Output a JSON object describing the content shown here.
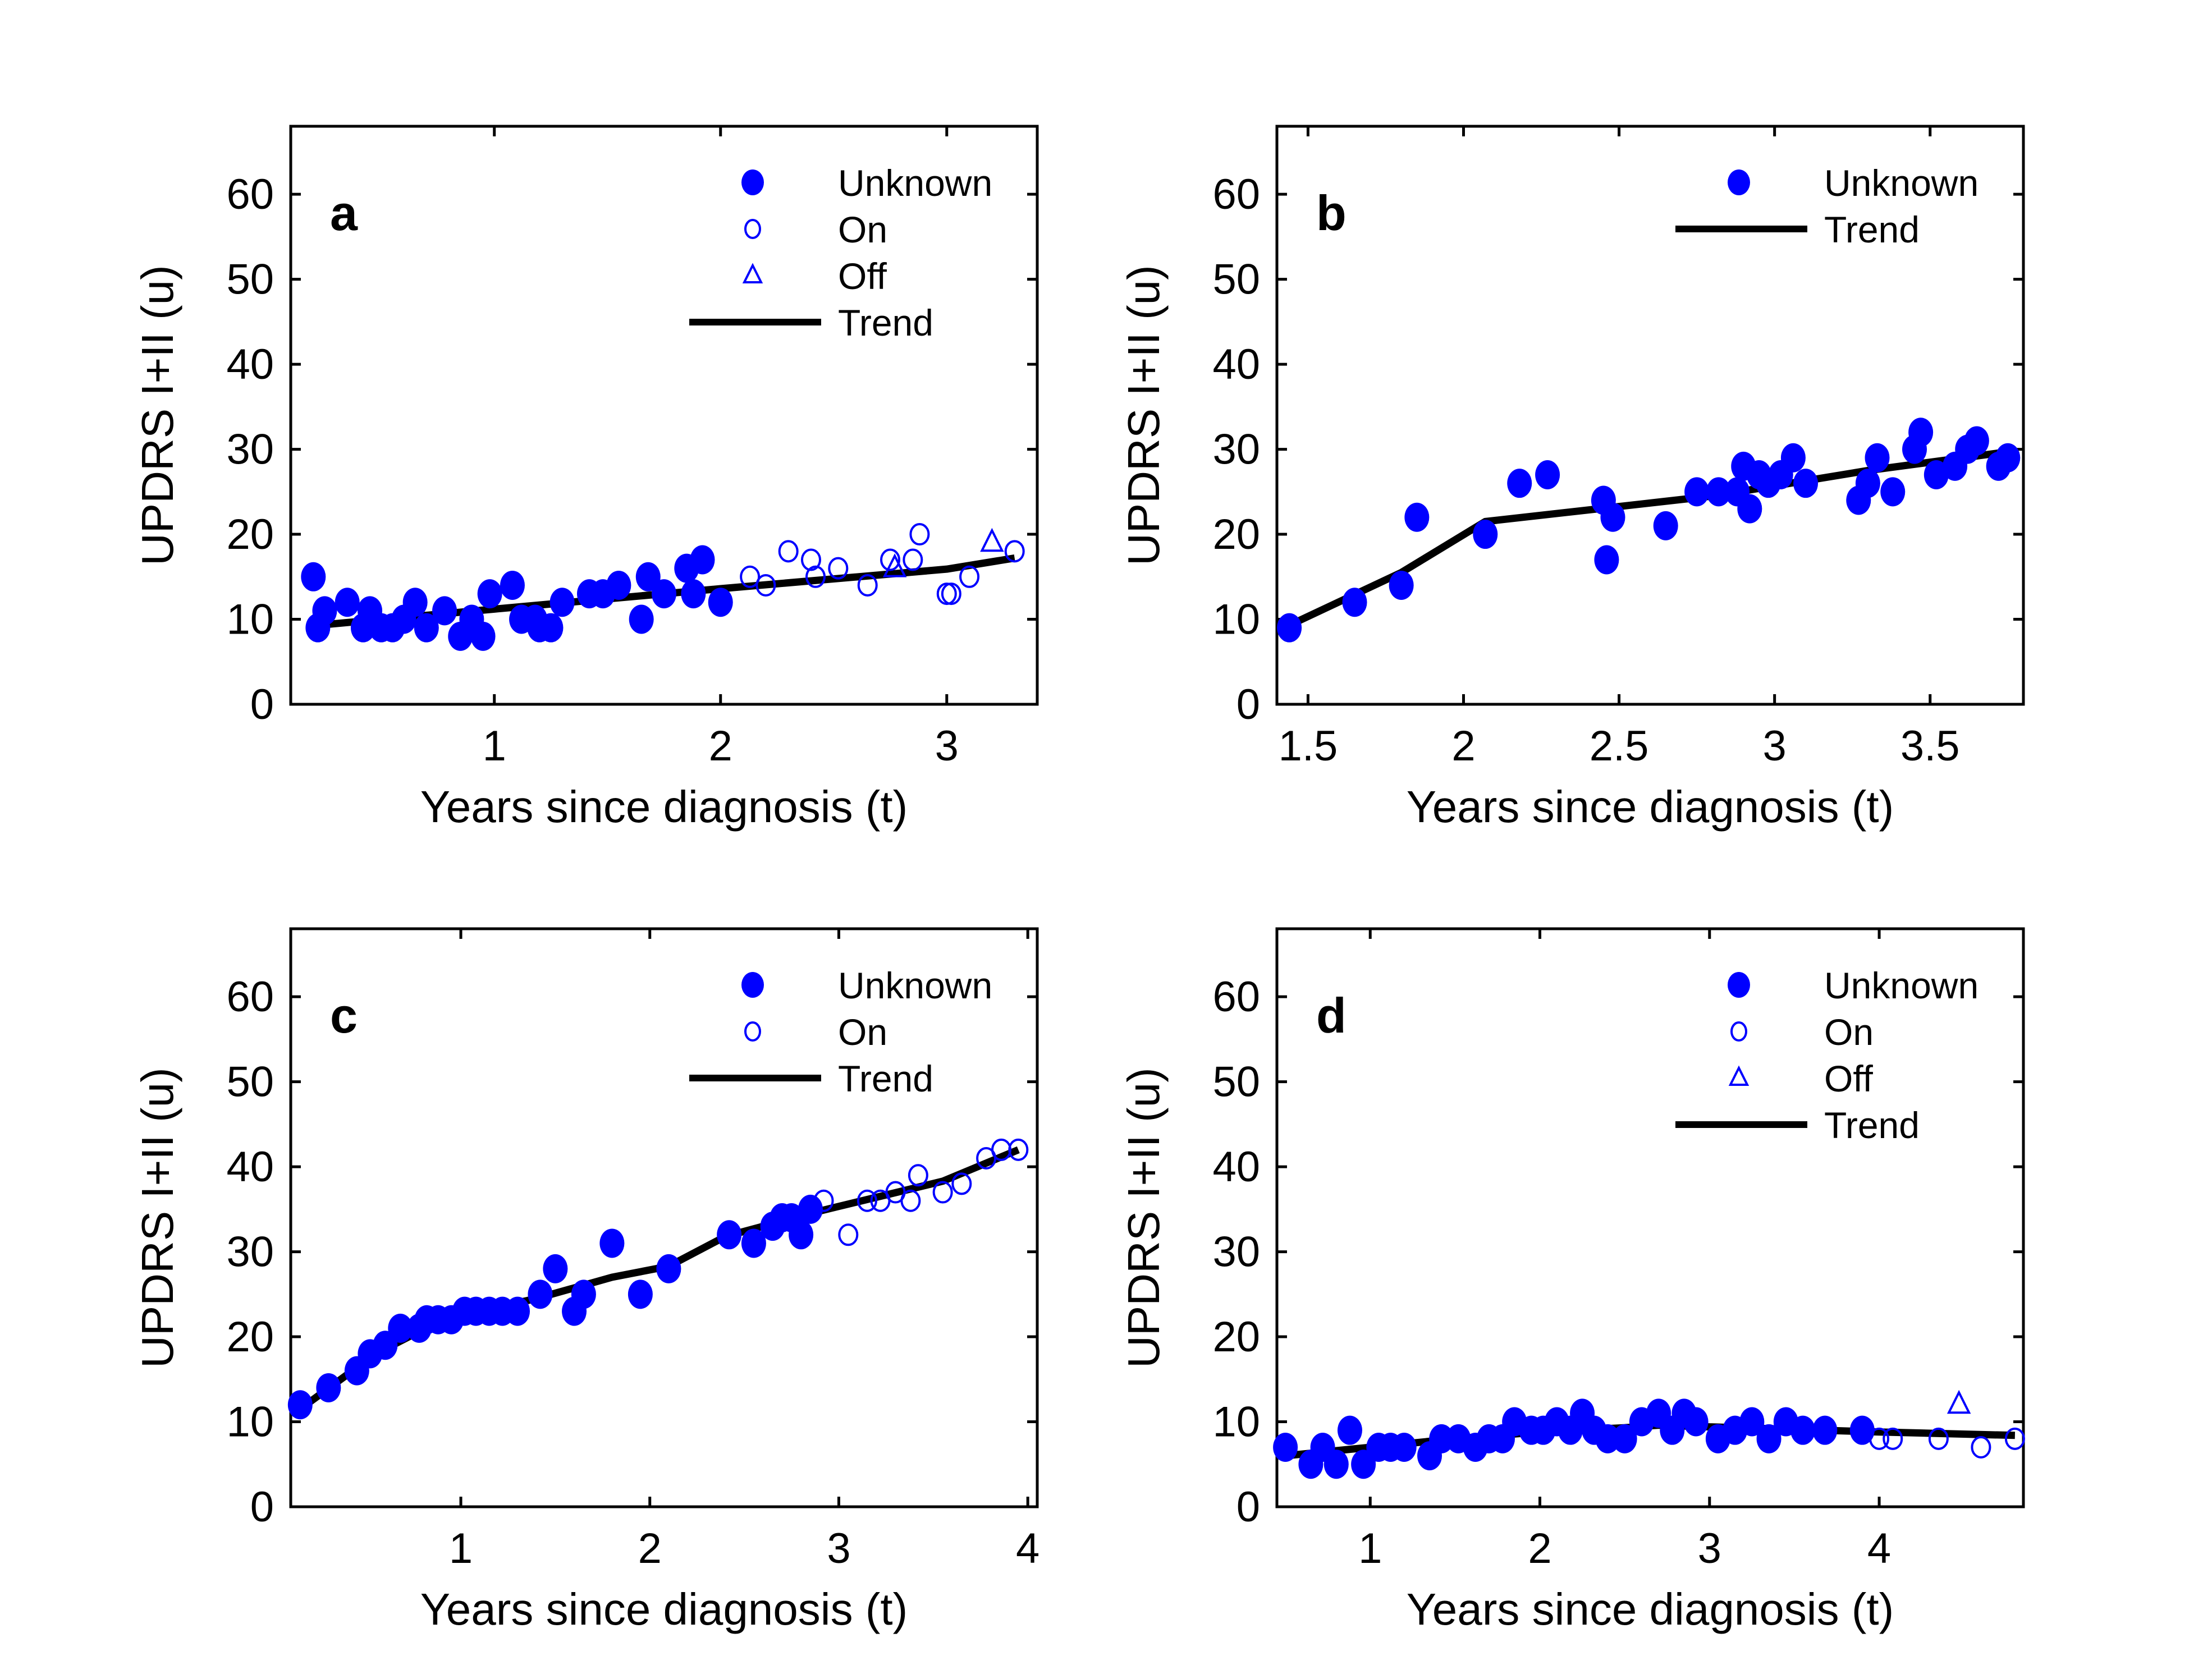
{
  "chart_data": [
    {
      "type": "scatter",
      "panel": "a",
      "xlabel": "Years since diagnosis (t)",
      "ylabel": "UPDRS I+II (u)",
      "xlim": [
        0.1,
        3.4
      ],
      "ylim": [
        0,
        68
      ],
      "xticks": [
        1,
        2,
        3
      ],
      "yticks": [
        0,
        10,
        20,
        30,
        40,
        50,
        60
      ],
      "legend": [
        "Unknown",
        "On",
        "Off",
        "Trend"
      ],
      "legend_position": "top-right",
      "series": [
        {
          "name": "Unknown",
          "marker": "filled-circle",
          "points": [
            [
              0.2,
              15
            ],
            [
              0.22,
              9
            ],
            [
              0.25,
              11
            ],
            [
              0.35,
              12
            ],
            [
              0.42,
              9
            ],
            [
              0.45,
              11
            ],
            [
              0.5,
              9
            ],
            [
              0.55,
              9
            ],
            [
              0.6,
              10
            ],
            [
              0.65,
              12
            ],
            [
              0.7,
              9
            ],
            [
              0.78,
              11
            ],
            [
              0.85,
              8
            ],
            [
              0.9,
              10
            ],
            [
              0.95,
              8
            ],
            [
              0.98,
              13
            ],
            [
              1.08,
              14
            ],
            [
              1.12,
              10
            ],
            [
              1.18,
              10
            ],
            [
              1.2,
              9
            ],
            [
              1.25,
              9
            ],
            [
              1.3,
              12
            ],
            [
              1.42,
              13
            ],
            [
              1.48,
              13
            ],
            [
              1.55,
              14
            ],
            [
              1.65,
              10
            ],
            [
              1.68,
              15
            ],
            [
              1.75,
              13
            ],
            [
              1.85,
              16
            ],
            [
              1.88,
              13
            ],
            [
              1.92,
              17
            ],
            [
              2.0,
              12
            ]
          ]
        },
        {
          "name": "On",
          "marker": "open-circle",
          "points": [
            [
              2.13,
              15
            ],
            [
              2.2,
              14
            ],
            [
              2.3,
              18
            ],
            [
              2.4,
              17
            ],
            [
              2.42,
              15
            ],
            [
              2.52,
              16
            ],
            [
              2.65,
              14
            ],
            [
              2.75,
              17
            ],
            [
              2.85,
              17
            ],
            [
              2.88,
              20
            ],
            [
              3.0,
              13
            ],
            [
              3.02,
              13
            ],
            [
              3.1,
              15
            ],
            [
              3.3,
              18
            ]
          ]
        },
        {
          "name": "Off",
          "marker": "open-triangle",
          "points": [
            [
              2.77,
              16
            ],
            [
              3.2,
              19
            ]
          ]
        },
        {
          "name": "Trend",
          "marker": "line",
          "points": [
            [
              0.22,
              9.3
            ],
            [
              1.0,
              11.2
            ],
            [
              2.0,
              13.6
            ],
            [
              3.0,
              15.9
            ],
            [
              3.3,
              17.2
            ]
          ]
        }
      ]
    },
    {
      "type": "scatter",
      "panel": "b",
      "xlabel": "Years since diagnosis (t)",
      "ylabel": "UPDRS I+II (u)",
      "xlim": [
        1.4,
        3.8
      ],
      "ylim": [
        0,
        68
      ],
      "xticks": [
        1.5,
        2,
        2.5,
        3,
        3.5
      ],
      "yticks": [
        0,
        10,
        20,
        30,
        40,
        50,
        60
      ],
      "legend": [
        "Unknown",
        "Trend"
      ],
      "legend_position": "top-right",
      "series": [
        {
          "name": "Unknown",
          "marker": "filled-circle",
          "points": [
            [
              1.44,
              9
            ],
            [
              1.65,
              12
            ],
            [
              1.8,
              14
            ],
            [
              1.85,
              22
            ],
            [
              2.07,
              20
            ],
            [
              2.18,
              26
            ],
            [
              2.27,
              27
            ],
            [
              2.45,
              24
            ],
            [
              2.46,
              17
            ],
            [
              2.48,
              22
            ],
            [
              2.65,
              21
            ],
            [
              2.75,
              25
            ],
            [
              2.82,
              25
            ],
            [
              2.88,
              25
            ],
            [
              2.9,
              28
            ],
            [
              2.92,
              23
            ],
            [
              2.95,
              27
            ],
            [
              2.98,
              26
            ],
            [
              3.02,
              27
            ],
            [
              3.06,
              29
            ],
            [
              3.1,
              26
            ],
            [
              3.27,
              24
            ],
            [
              3.3,
              26
            ],
            [
              3.33,
              29
            ],
            [
              3.38,
              25
            ],
            [
              3.45,
              30
            ],
            [
              3.47,
              32
            ],
            [
              3.52,
              27
            ],
            [
              3.58,
              28
            ],
            [
              3.62,
              30
            ],
            [
              3.65,
              31
            ],
            [
              3.72,
              28
            ],
            [
              3.75,
              29
            ]
          ]
        },
        {
          "name": "Trend",
          "marker": "line",
          "points": [
            [
              1.44,
              9.3
            ],
            [
              1.8,
              15.5
            ],
            [
              2.07,
              21.5
            ],
            [
              2.8,
              24.5
            ],
            [
              3.3,
              27.5
            ],
            [
              3.75,
              29.7
            ]
          ]
        }
      ]
    },
    {
      "type": "scatter",
      "panel": "c",
      "xlabel": "Years since diagnosis (t)",
      "ylabel": "UPDRS I+II (u)",
      "xlim": [
        0.1,
        4.05
      ],
      "ylim": [
        0,
        68
      ],
      "xticks": [
        1,
        2,
        3,
        4
      ],
      "yticks": [
        0,
        10,
        20,
        30,
        40,
        50,
        60
      ],
      "legend": [
        "Unknown",
        "On",
        "Trend"
      ],
      "legend_position": "top-right",
      "series": [
        {
          "name": "Unknown",
          "marker": "filled-circle",
          "points": [
            [
              0.15,
              12
            ],
            [
              0.3,
              14
            ],
            [
              0.45,
              16
            ],
            [
              0.52,
              18
            ],
            [
              0.6,
              19
            ],
            [
              0.68,
              21
            ],
            [
              0.78,
              21
            ],
            [
              0.82,
              22
            ],
            [
              0.88,
              22
            ],
            [
              0.95,
              22
            ],
            [
              1.02,
              23
            ],
            [
              1.08,
              23
            ],
            [
              1.15,
              23
            ],
            [
              1.22,
              23
            ],
            [
              1.3,
              23
            ],
            [
              1.42,
              25
            ],
            [
              1.5,
              28
            ],
            [
              1.6,
              23
            ],
            [
              1.65,
              25
            ],
            [
              1.8,
              31
            ],
            [
              1.95,
              25
            ],
            [
              2.1,
              28
            ],
            [
              2.42,
              32
            ],
            [
              2.55,
              31
            ],
            [
              2.65,
              33
            ],
            [
              2.7,
              34
            ],
            [
              2.75,
              34
            ],
            [
              2.8,
              32
            ],
            [
              2.85,
              35
            ]
          ]
        },
        {
          "name": "On",
          "marker": "open-circle",
          "points": [
            [
              2.92,
              36
            ],
            [
              3.05,
              32
            ],
            [
              3.15,
              36
            ],
            [
              3.22,
              36
            ],
            [
              3.3,
              37
            ],
            [
              3.38,
              36
            ],
            [
              3.42,
              39
            ],
            [
              3.55,
              37
            ],
            [
              3.65,
              38
            ],
            [
              3.78,
              41
            ],
            [
              3.86,
              42
            ],
            [
              3.95,
              42
            ]
          ]
        },
        {
          "name": "Trend",
          "marker": "line",
          "points": [
            [
              0.15,
              11.5
            ],
            [
              0.55,
              18
            ],
            [
              0.9,
              22
            ],
            [
              1.4,
              24.5
            ],
            [
              1.8,
              27
            ],
            [
              2.1,
              28.3
            ],
            [
              2.4,
              31.8
            ],
            [
              2.9,
              34.8
            ],
            [
              3.55,
              38.3
            ],
            [
              3.95,
              42
            ]
          ]
        }
      ]
    },
    {
      "type": "scatter",
      "panel": "d",
      "xlabel": "Years since diagnosis (t)",
      "ylabel": "UPDRS I+II (u)",
      "xlim": [
        0.45,
        4.85
      ],
      "ylim": [
        0,
        68
      ],
      "xticks": [
        1,
        2,
        3,
        4
      ],
      "yticks": [
        0,
        10,
        20,
        30,
        40,
        50,
        60
      ],
      "legend": [
        "Unknown",
        "On",
        "Off",
        "Trend"
      ],
      "legend_position": "top-right",
      "series": [
        {
          "name": "Unknown",
          "marker": "filled-circle",
          "points": [
            [
              0.5,
              7
            ],
            [
              0.65,
              5
            ],
            [
              0.72,
              7
            ],
            [
              0.8,
              5
            ],
            [
              0.88,
              9
            ],
            [
              0.96,
              5
            ],
            [
              1.05,
              7
            ],
            [
              1.12,
              7
            ],
            [
              1.2,
              7
            ],
            [
              1.35,
              6
            ],
            [
              1.42,
              8
            ],
            [
              1.52,
              8
            ],
            [
              1.62,
              7
            ],
            [
              1.7,
              8
            ],
            [
              1.78,
              8
            ],
            [
              1.85,
              10
            ],
            [
              1.95,
              9
            ],
            [
              2.02,
              9
            ],
            [
              2.1,
              10
            ],
            [
              2.18,
              9
            ],
            [
              2.25,
              11
            ],
            [
              2.32,
              9
            ],
            [
              2.4,
              8
            ],
            [
              2.5,
              8
            ],
            [
              2.6,
              10
            ],
            [
              2.7,
              11
            ],
            [
              2.78,
              9
            ],
            [
              2.85,
              11
            ],
            [
              2.92,
              10
            ],
            [
              3.05,
              8
            ],
            [
              3.15,
              9
            ],
            [
              3.25,
              10
            ],
            [
              3.35,
              8
            ],
            [
              3.45,
              10
            ],
            [
              3.55,
              9
            ],
            [
              3.68,
              9
            ],
            [
              3.9,
              9
            ]
          ]
        },
        {
          "name": "On",
          "marker": "open-circle",
          "points": [
            [
              4.0,
              8
            ],
            [
              4.08,
              8
            ],
            [
              4.35,
              8
            ],
            [
              4.6,
              7
            ],
            [
              4.8,
              8
            ]
          ]
        },
        {
          "name": "Off",
          "marker": "open-triangle",
          "points": [
            [
              4.47,
              12
            ]
          ]
        },
        {
          "name": "Trend",
          "marker": "line",
          "points": [
            [
              0.5,
              6
            ],
            [
              1.0,
              7
            ],
            [
              1.5,
              8
            ],
            [
              2.0,
              8.8
            ],
            [
              2.5,
              9.3
            ],
            [
              2.7,
              9.6
            ],
            [
              3.0,
              9.4
            ],
            [
              3.5,
              9.1
            ],
            [
              4.0,
              8.8
            ],
            [
              4.8,
              8.4
            ]
          ]
        }
      ]
    }
  ],
  "colors": {
    "marker": "#0000ff",
    "trend": "#000000"
  }
}
